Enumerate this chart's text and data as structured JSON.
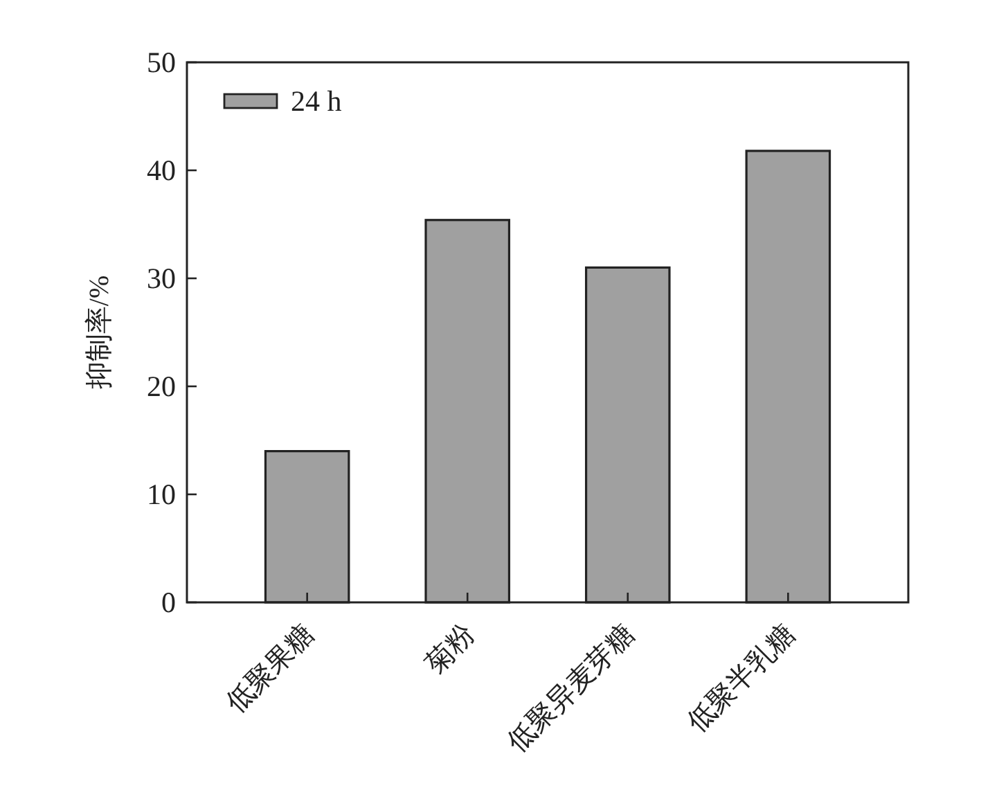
{
  "chart_data": {
    "type": "bar",
    "ylabel": "抑制率/%",
    "categories": [
      "低聚果糖",
      "菊粉",
      "低聚异麦芽糖",
      "低聚半乳糖"
    ],
    "series": [
      {
        "name": "24 h",
        "color": "#a0a0a0",
        "values": [
          14.0,
          35.4,
          31.0,
          41.8
        ]
      }
    ],
    "ylim": [
      0,
      50
    ],
    "yticks": [
      0,
      10,
      20,
      30,
      40,
      50
    ],
    "legend": "top left"
  }
}
